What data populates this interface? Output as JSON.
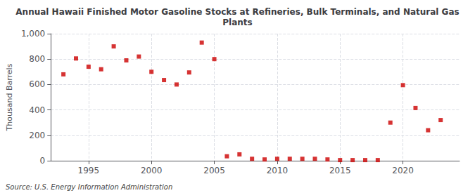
{
  "chart_data": {
    "type": "scatter",
    "title": "Annual Hawaii Finished Motor Gasoline Stocks at Refineries, Bulk Terminals, and Natural Gas\nPlants",
    "ylabel": "Thousand Barrels",
    "source": "Source: U.S. Energy Information Administration",
    "x": [
      1993,
      1994,
      1995,
      1996,
      1997,
      1998,
      1999,
      2000,
      2001,
      2002,
      2003,
      2004,
      2005,
      2006,
      2007,
      2008,
      2009,
      2010,
      2011,
      2012,
      2013,
      2014,
      2015,
      2016,
      2017,
      2018,
      2019,
      2020,
      2021,
      2022,
      2023
    ],
    "values": [
      680,
      805,
      740,
      720,
      900,
      790,
      820,
      700,
      635,
      600,
      695,
      930,
      800,
      35,
      50,
      15,
      10,
      15,
      15,
      15,
      15,
      10,
      5,
      5,
      5,
      5,
      300,
      595,
      415,
      240,
      320
    ],
    "color": "#cc0000",
    "marker": "square",
    "xlim": [
      1992,
      2024.5
    ],
    "xticks": [
      1995,
      2000,
      2005,
      2010,
      2015,
      2020
    ],
    "ylim": [
      0,
      1000
    ],
    "yticks": [
      0,
      200,
      400,
      600,
      800,
      {
        "value": 1000,
        "label": "1,000"
      }
    ],
    "grid": true
  }
}
